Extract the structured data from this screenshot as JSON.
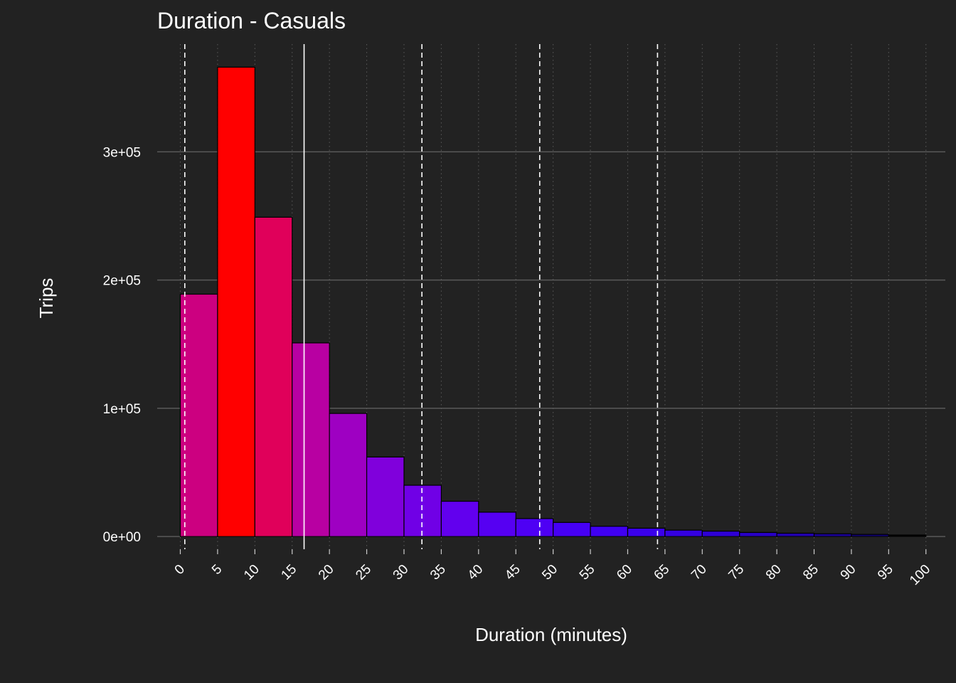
{
  "chart_data": {
    "type": "bar",
    "title": "Duration - Casuals",
    "xlabel": "Duration (minutes)",
    "ylabel": "Trips",
    "bin_width": 5,
    "bins_start": [
      0,
      5,
      10,
      15,
      20,
      25,
      30,
      35,
      40,
      45,
      50,
      55,
      60,
      65,
      70,
      75,
      80,
      85,
      90,
      95
    ],
    "values": [
      189000,
      366000,
      249000,
      151000,
      96000,
      62000,
      40000,
      27500,
      19000,
      14000,
      11000,
      8000,
      6500,
      5000,
      4200,
      3200,
      2600,
      2200,
      1700,
      1200
    ],
    "bar_colors": [
      "#CC0080",
      "#FF0000",
      "#E0005A",
      "#B800A2",
      "#9E00C2",
      "#8000DC",
      "#7000E6",
      "#6200EE",
      "#5600F2",
      "#4E00F4",
      "#4600F4",
      "#4000F2",
      "#3A00EC",
      "#3400E2",
      "#2E00D6",
      "#2800C6",
      "#2200B2",
      "#1A0096",
      "#100070",
      "#000000"
    ],
    "x_ticks": [
      "0",
      "5",
      "10",
      "15",
      "20",
      "25",
      "30",
      "35",
      "40",
      "45",
      "50",
      "55",
      "60",
      "65",
      "70",
      "75",
      "80",
      "85",
      "90",
      "95",
      "100"
    ],
    "y_ticks": [
      {
        "value": 0,
        "label": "0e+00"
      },
      {
        "value": 100000,
        "label": "1e+05"
      },
      {
        "value": 200000,
        "label": "2e+05"
      },
      {
        "value": 300000,
        "label": "3e+05"
      }
    ],
    "xlim": [
      -3.1,
      102.6
    ],
    "ylim": [
      -9900,
      384000
    ],
    "solid_reference_line_x": 16.6,
    "dashed_reference_lines_x": [
      0.6,
      32.4,
      48.2,
      64
    ]
  }
}
